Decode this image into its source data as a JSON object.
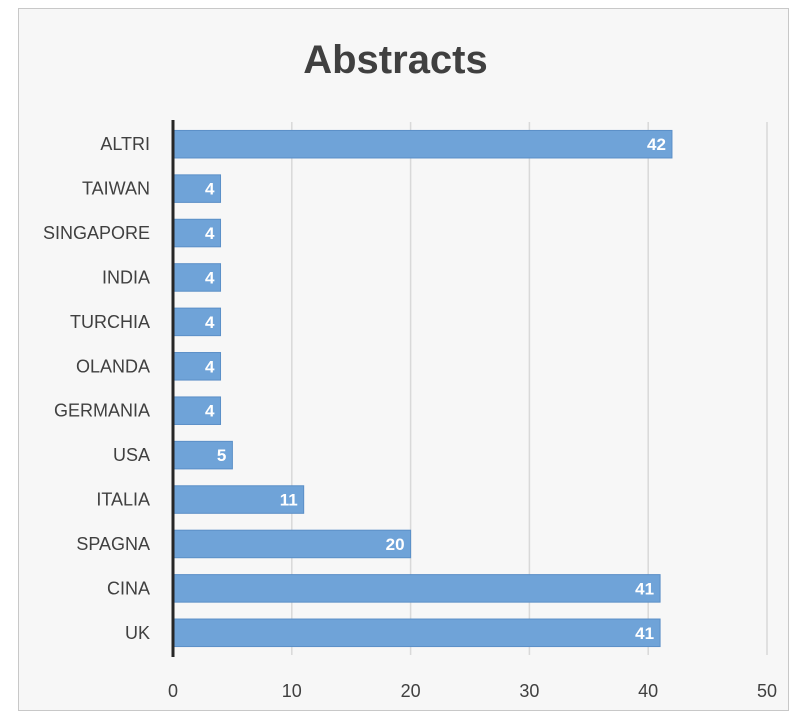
{
  "chart_data": {
    "type": "bar",
    "orientation": "horizontal",
    "title": "Abstracts",
    "xlabel": "",
    "ylabel": "",
    "categories": [
      "UK",
      "CINA",
      "SPAGNA",
      "ITALIA",
      "USA",
      "GERMANIA",
      "OLANDA",
      "TURCHIA",
      "INDIA",
      "SINGAPORE",
      "TAIWAN",
      "ALTRI"
    ],
    "values": [
      41,
      41,
      20,
      11,
      5,
      4,
      4,
      4,
      4,
      4,
      4,
      42
    ],
    "xlim": [
      0,
      50
    ],
    "xticks": [
      0,
      10,
      20,
      30,
      40,
      50
    ],
    "grid": true,
    "data_labels": true,
    "legend": "none",
    "colors": {
      "bar": "#6fa3d8",
      "bar_edge": "#5b8fc7",
      "frame_bg": "#f7f7f7",
      "text": "#404040"
    }
  }
}
